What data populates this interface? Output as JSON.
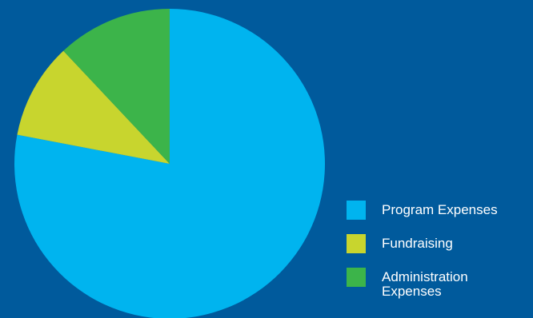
{
  "chart_data": {
    "type": "pie",
    "title": "",
    "slices": [
      {
        "label": "Program Expenses",
        "value": 78,
        "color": "#00b4ef"
      },
      {
        "label": "Fundraising",
        "value": 10,
        "color": "#c8d52e"
      },
      {
        "label": "Administration Expenses",
        "value": 12,
        "color": "#3cb44a"
      }
    ],
    "legend_position": "right",
    "background": "#005a9c"
  },
  "legend": {
    "items": [
      {
        "label": "Program Expenses",
        "color": "#00b4ef"
      },
      {
        "label": "Fundraising",
        "color": "#c8d52e"
      },
      {
        "label": "Administration Expenses",
        "color": "#3cb44a"
      }
    ]
  }
}
